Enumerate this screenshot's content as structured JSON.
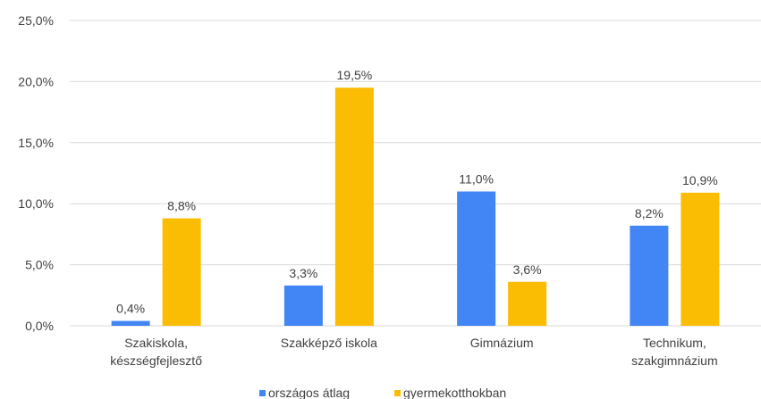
{
  "chart_data": {
    "type": "bar",
    "categories": [
      [
        "Szakiskola,",
        "készségfejlesztő"
      ],
      [
        "Szakképző iskola"
      ],
      [
        "Gimnázium"
      ],
      [
        "Technikum,",
        "szakgimnázium"
      ]
    ],
    "series": [
      {
        "name": "országos átlag",
        "color": "#4285F4",
        "values": [
          0.4,
          3.3,
          11.0,
          8.2
        ],
        "labels": [
          "0,4%",
          "3,3%",
          "11,0%",
          "8,2%"
        ]
      },
      {
        "name": "gyermekotthokban",
        "color": "#FBBC04",
        "values": [
          8.8,
          19.5,
          3.6,
          10.9
        ],
        "labels": [
          "8,8%",
          "19,5%",
          "3,6%",
          "10,9%"
        ]
      }
    ],
    "y_ticks": [
      0,
      5,
      10,
      15,
      20,
      25
    ],
    "y_tick_labels": [
      "0,0%",
      "5,0%",
      "10,0%",
      "15,0%",
      "20,0%",
      "25,0%"
    ],
    "ylim": [
      0,
      25
    ],
    "grid": true,
    "legend_position": "bottom",
    "gridline_color": "#D9D9D9"
  }
}
